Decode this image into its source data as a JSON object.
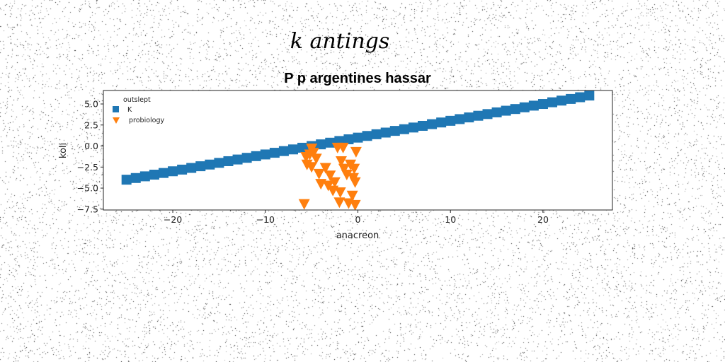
{
  "chart_data": {
    "type": "scatter",
    "suptitle": "k antings",
    "title": "P p argentines hassar",
    "xlabel": "anacreon",
    "ylabel": "koli",
    "xlim": [
      -27.5,
      27.5
    ],
    "ylim": [
      -7.6,
      6.6
    ],
    "xticks": [
      -20,
      -10,
      0,
      10,
      20
    ],
    "xtick_labels": [
      "−20",
      "−10",
      "0",
      "10",
      "20"
    ],
    "yticks": [
      5.0,
      2.5,
      0.0,
      -2.5,
      -5.0,
      -7.5
    ],
    "ytick_labels": [
      "5.0",
      "2.5",
      "0.0",
      "−2.5",
      "−5.0",
      "−7.5"
    ],
    "grid": false,
    "legend": {
      "title": "outslept",
      "position": "top-left"
    },
    "series": [
      {
        "name": "K",
        "marker": "square",
        "color": "#1f77b4",
        "x": [
          -25.0,
          -24.0,
          -23.0,
          -22.0,
          -21.0,
          -20.0,
          -19.0,
          -18.0,
          -17.0,
          -16.0,
          -15.0,
          -14.0,
          -13.0,
          -12.0,
          -11.0,
          -10.0,
          -9.0,
          -8.0,
          -7.0,
          -6.0,
          -5.0,
          -4.0,
          -3.0,
          -2.0,
          -1.0,
          0.0,
          1.0,
          2.0,
          3.0,
          4.0,
          5.0,
          6.0,
          7.0,
          8.0,
          9.0,
          10.0,
          11.0,
          12.0,
          13.0,
          14.0,
          15.0,
          16.0,
          17.0,
          18.0,
          19.0,
          20.0,
          21.0,
          22.0,
          23.0,
          24.0,
          25.0
        ],
        "y": [
          -4.0,
          -3.8,
          -3.6,
          -3.4,
          -3.2,
          -3.0,
          -2.8,
          -2.6,
          -2.4,
          -2.2,
          -2.0,
          -1.8,
          -1.6,
          -1.4,
          -1.2,
          -1.0,
          -0.8,
          -0.6,
          -0.4,
          -0.2,
          0.0,
          0.2,
          0.4,
          0.6,
          0.8,
          1.0,
          1.2,
          1.4,
          1.6,
          1.8,
          2.0,
          2.2,
          2.4,
          2.6,
          2.8,
          3.0,
          3.2,
          3.4,
          3.6,
          3.8,
          4.0,
          4.2,
          4.4,
          4.6,
          4.8,
          5.0,
          5.2,
          5.4,
          5.6,
          5.8,
          6.0
        ]
      },
      {
        "name": "probiology",
        "marker": "triangle_down",
        "color": "#ff7f0e",
        "x": [
          -5.0,
          -4.8,
          -5.2,
          -5.6,
          -4.5,
          -2.2,
          -1.6,
          -0.2,
          -5.5,
          -5.0,
          -3.5,
          -1.8,
          -0.8,
          -0.4,
          -1.5,
          -4.2,
          -3.0,
          -1.2,
          -0.5,
          -2.5,
          -4.0,
          -3.2,
          -0.3,
          -2.7,
          -1.9,
          -0.6,
          -5.8,
          -2.0,
          -1.0,
          -0.3
        ],
        "y": [
          -0.3,
          -0.8,
          -1.0,
          -1.3,
          -1.5,
          -0.2,
          -0.2,
          -0.7,
          -2.2,
          -2.5,
          -2.6,
          -1.8,
          -2.2,
          -2.7,
          -2.7,
          -3.3,
          -3.5,
          -3.4,
          -3.8,
          -4.3,
          -4.5,
          -4.7,
          -4.3,
          -5.3,
          -5.5,
          -5.9,
          -6.9,
          -6.7,
          -6.8,
          -7.0
        ]
      }
    ]
  }
}
